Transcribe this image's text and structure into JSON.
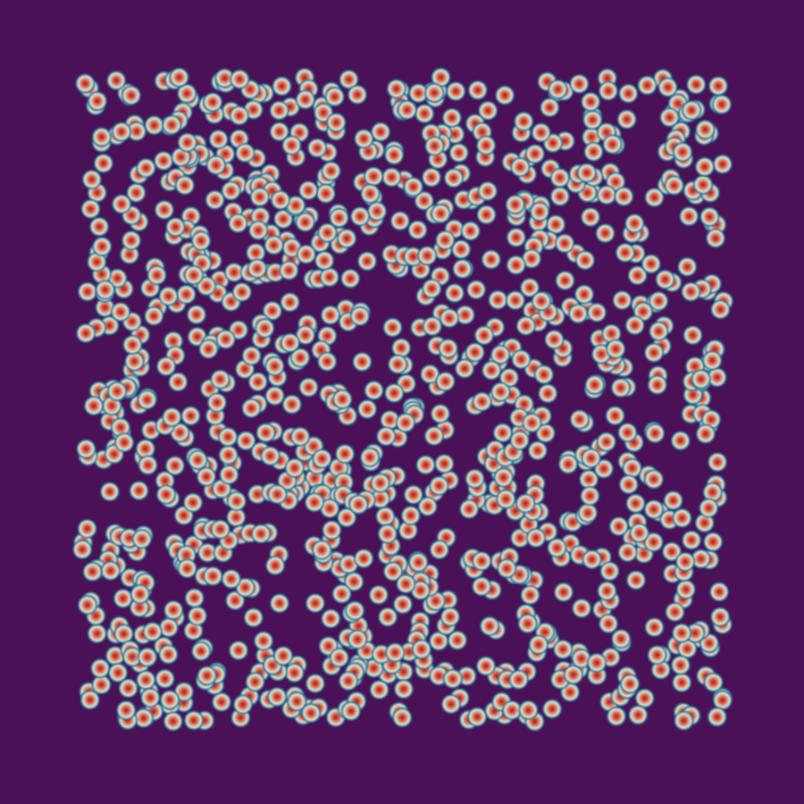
{
  "image": {
    "description_type": "density-field-visualization",
    "colors": {
      "background": "#4b1156",
      "ring_outer": "#2a7f9a",
      "ring_light": "#cfe6de",
      "core_warm": "#e7a07d",
      "core_hot": "#d6573e",
      "center_dark": "#8c1d43"
    },
    "particles": {
      "count": 1100,
      "region": "central-square",
      "distribution": "random",
      "seed": 20230907
    }
  }
}
